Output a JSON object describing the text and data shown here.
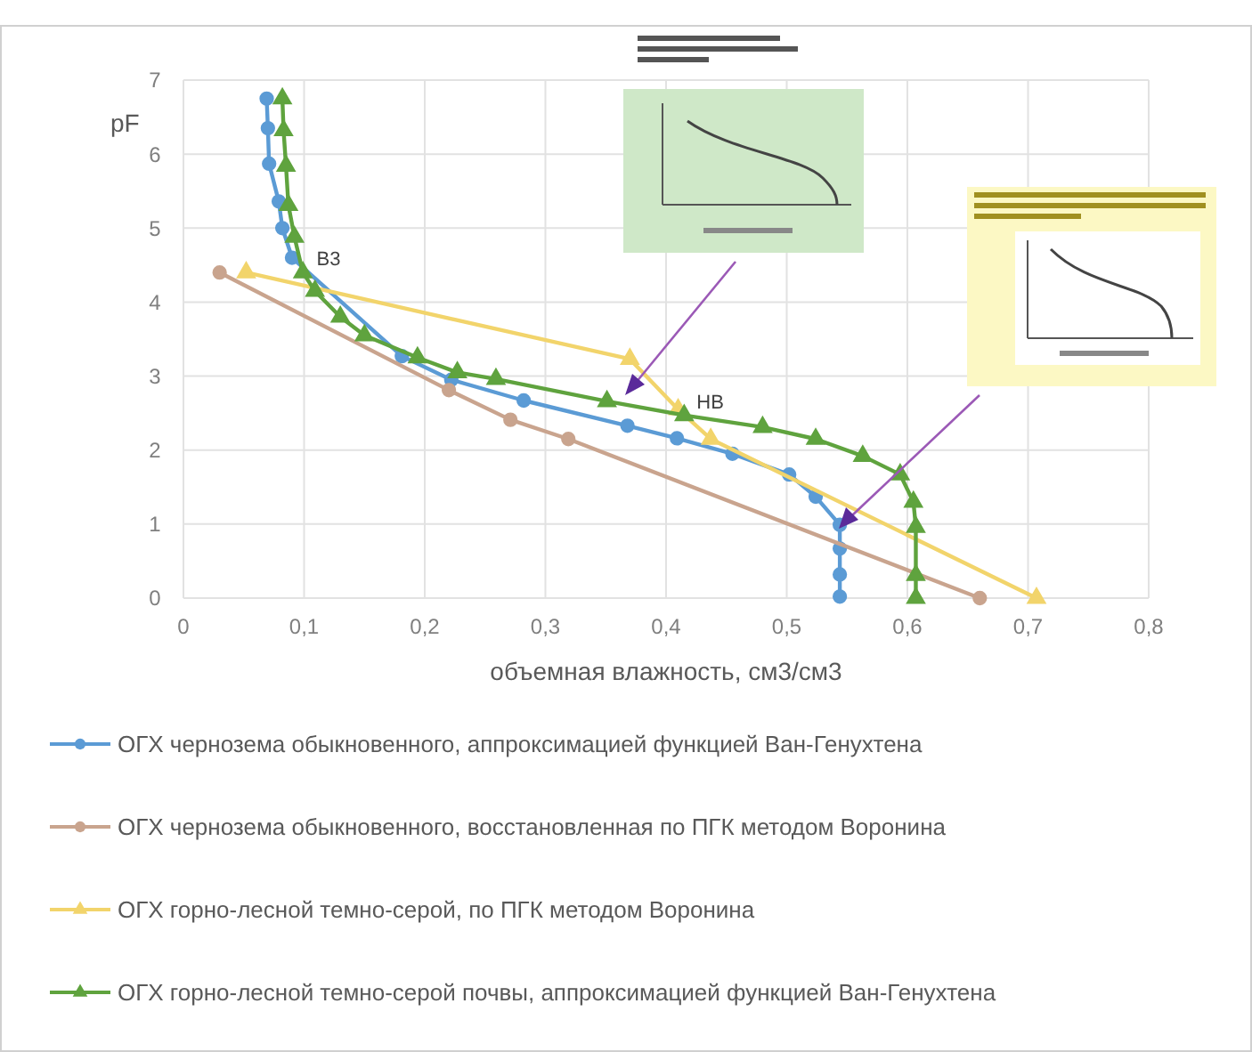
{
  "chart_data": {
    "type": "line",
    "xlabel": "объемная влажность, см3/см3",
    "ylabel": "pF",
    "xlim": [
      0,
      0.8
    ],
    "xticks": [
      {
        "value": 0,
        "label": "0"
      },
      {
        "value": 0.1,
        "label": "0,1"
      },
      {
        "value": 0.2,
        "label": "0,2"
      },
      {
        "value": 0.3,
        "label": "0,3"
      },
      {
        "value": 0.4,
        "label": "0,4"
      },
      {
        "value": 0.5,
        "label": "0,5"
      },
      {
        "value": 0.6,
        "label": "0,6"
      },
      {
        "value": 0.7,
        "label": "0,7"
      },
      {
        "value": 0.8,
        "label": "0,8"
      }
    ],
    "ylim": [
      0,
      7
    ],
    "yticks": [
      0,
      1,
      2,
      3,
      4,
      5,
      6,
      7
    ],
    "grid": true,
    "legend": "bottom",
    "series": [
      {
        "name": "ОГХ чернозема обыкновенного,  аппроксимацией функцией Ван-Генухтена",
        "color": "#5b9bd5",
        "marker": "circle",
        "x": [
          0.069,
          0.07,
          0.071,
          0.079,
          0.082,
          0.09,
          0.181,
          0.222,
          0.282,
          0.368,
          0.409,
          0.455,
          0.502,
          0.524,
          0.544,
          0.544,
          0.544,
          0.544
        ],
        "values": [
          6.75,
          6.35,
          5.87,
          5.36,
          5.0,
          4.6,
          3.27,
          2.95,
          2.67,
          2.33,
          2.16,
          1.95,
          1.67,
          1.37,
          0.99,
          0.67,
          0.32,
          0.02
        ]
      },
      {
        "name": "ОГХ чернозема обыкновенного, восстановленная по ПГК методом Воронина",
        "color": "#c9a48e",
        "marker": "circle",
        "x": [
          0.03,
          0.22,
          0.271,
          0.319,
          0.66
        ],
        "values": [
          4.4,
          2.81,
          2.41,
          2.15,
          0
        ]
      },
      {
        "name": "ОГХ горно-лесной  темно-серой, по ПГК методом Воронина",
        "color": "#f2d46b",
        "marker": "triangle",
        "x": [
          0.052,
          0.37,
          0.41,
          0.437,
          0.707
        ],
        "values": [
          4.4,
          3.23,
          2.55,
          2.15,
          0
        ]
      },
      {
        "name": "ОГХ горно-лесной темно-серой почвы, аппроксимацией функцией Ван-Генухтена",
        "color": "#5fa33e",
        "marker": "triangle",
        "x": [
          0.082,
          0.083,
          0.085,
          0.087,
          0.092,
          0.099,
          0.109,
          0.13,
          0.15,
          0.194,
          0.227,
          0.259,
          0.351,
          0.415,
          0.48,
          0.524,
          0.563,
          0.594,
          0.605,
          0.607,
          0.607,
          0.607
        ],
        "values": [
          6.75,
          6.32,
          5.84,
          5.31,
          4.88,
          4.4,
          4.15,
          3.8,
          3.55,
          3.25,
          3.05,
          2.96,
          2.66,
          2.47,
          2.31,
          2.15,
          1.92,
          1.67,
          1.3,
          0.96,
          0.31,
          0
        ]
      }
    ],
    "annotations": [
      {
        "text": "В3",
        "x": 0.1,
        "y": 4.4
      },
      {
        "text": "НВ",
        "x": 0.415,
        "y": 2.47
      }
    ]
  }
}
